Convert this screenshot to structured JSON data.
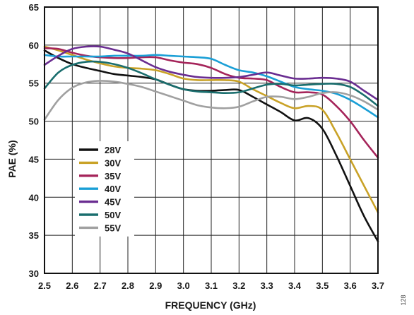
{
  "chart_data": {
    "type": "line",
    "xlabel": "FREQUENCY (GHz)",
    "ylabel": "PAE (%)",
    "xlim": [
      2.5,
      3.7
    ],
    "ylim": [
      30,
      65
    ],
    "xticks": [
      "2.5",
      "2.6",
      "2.7",
      "2.8",
      "2.9",
      "3.0",
      "3.1",
      "3.2",
      "3.3",
      "3.4",
      "3.5",
      "3.6",
      "3.7"
    ],
    "yticks": [
      "30",
      "35",
      "40",
      "45",
      "50",
      "55",
      "60",
      "65"
    ],
    "grid": true,
    "legend_position": "lower-left",
    "x": [
      2.5,
      2.55,
      2.6,
      2.65,
      2.7,
      2.75,
      2.8,
      2.85,
      2.9,
      2.95,
      3.0,
      3.05,
      3.1,
      3.15,
      3.2,
      3.25,
      3.3,
      3.35,
      3.4,
      3.45,
      3.5,
      3.55,
      3.6,
      3.65,
      3.7
    ],
    "series": [
      {
        "name": "28V",
        "color": "#111111",
        "values": [
          59.3,
          58.3,
          57.5,
          57.0,
          56.6,
          56.2,
          56.0,
          55.8,
          55.5,
          54.8,
          54.2,
          54.0,
          54.0,
          54.1,
          54.1,
          53.2,
          52.2,
          51.2,
          50.1,
          50.4,
          49.0,
          45.5,
          41.5,
          37.5,
          34.2
        ]
      },
      {
        "name": "30V",
        "color": "#c9a227",
        "values": [
          59.8,
          59.3,
          58.7,
          58.1,
          57.6,
          57.2,
          57.0,
          56.9,
          56.7,
          56.2,
          55.6,
          55.4,
          55.4,
          55.4,
          55.2,
          54.2,
          53.3,
          52.4,
          51.7,
          52.0,
          51.5,
          48.5,
          45.0,
          41.5,
          38.0
        ]
      },
      {
        "name": "35V",
        "color": "#a5245a",
        "values": [
          59.6,
          59.5,
          59.0,
          58.6,
          58.4,
          58.3,
          58.3,
          58.4,
          58.4,
          58.0,
          57.7,
          57.5,
          57.0,
          56.2,
          55.7,
          55.6,
          55.4,
          54.5,
          53.8,
          53.8,
          53.5,
          52.0,
          50.0,
          47.5,
          45.2
        ]
      },
      {
        "name": "40V",
        "color": "#1a9fd6",
        "values": [
          58.7,
          58.5,
          58.5,
          58.5,
          58.5,
          58.6,
          58.6,
          58.6,
          58.7,
          58.6,
          58.5,
          58.4,
          58.2,
          57.4,
          56.7,
          56.4,
          55.9,
          55.2,
          54.5,
          54.2,
          54.0,
          53.6,
          52.8,
          51.7,
          50.5
        ]
      },
      {
        "name": "45V",
        "color": "#6a2d91",
        "values": [
          57.4,
          58.6,
          59.5,
          59.8,
          59.8,
          59.4,
          58.9,
          58.0,
          57.1,
          56.5,
          56.1,
          55.8,
          55.7,
          55.7,
          55.8,
          56.1,
          56.4,
          56.0,
          55.6,
          55.6,
          55.7,
          55.6,
          55.2,
          54.0,
          52.8
        ]
      },
      {
        "name": "50V",
        "color": "#1a6e6e",
        "values": [
          54.3,
          56.4,
          57.4,
          57.8,
          57.8,
          57.5,
          57.0,
          56.3,
          55.5,
          54.8,
          54.2,
          53.9,
          53.8,
          53.7,
          53.8,
          54.3,
          54.8,
          54.9,
          54.7,
          54.8,
          54.9,
          54.9,
          54.5,
          53.4,
          52.0
        ]
      },
      {
        "name": "55V",
        "color": "#a0a0a0",
        "values": [
          50.2,
          52.8,
          54.4,
          55.1,
          55.3,
          55.2,
          54.9,
          54.5,
          53.9,
          53.3,
          52.7,
          52.1,
          51.8,
          51.7,
          51.9,
          52.6,
          53.2,
          53.2,
          52.9,
          53.2,
          53.7,
          53.8,
          53.4,
          52.6,
          51.5
        ]
      }
    ]
  },
  "figure_id": "128"
}
